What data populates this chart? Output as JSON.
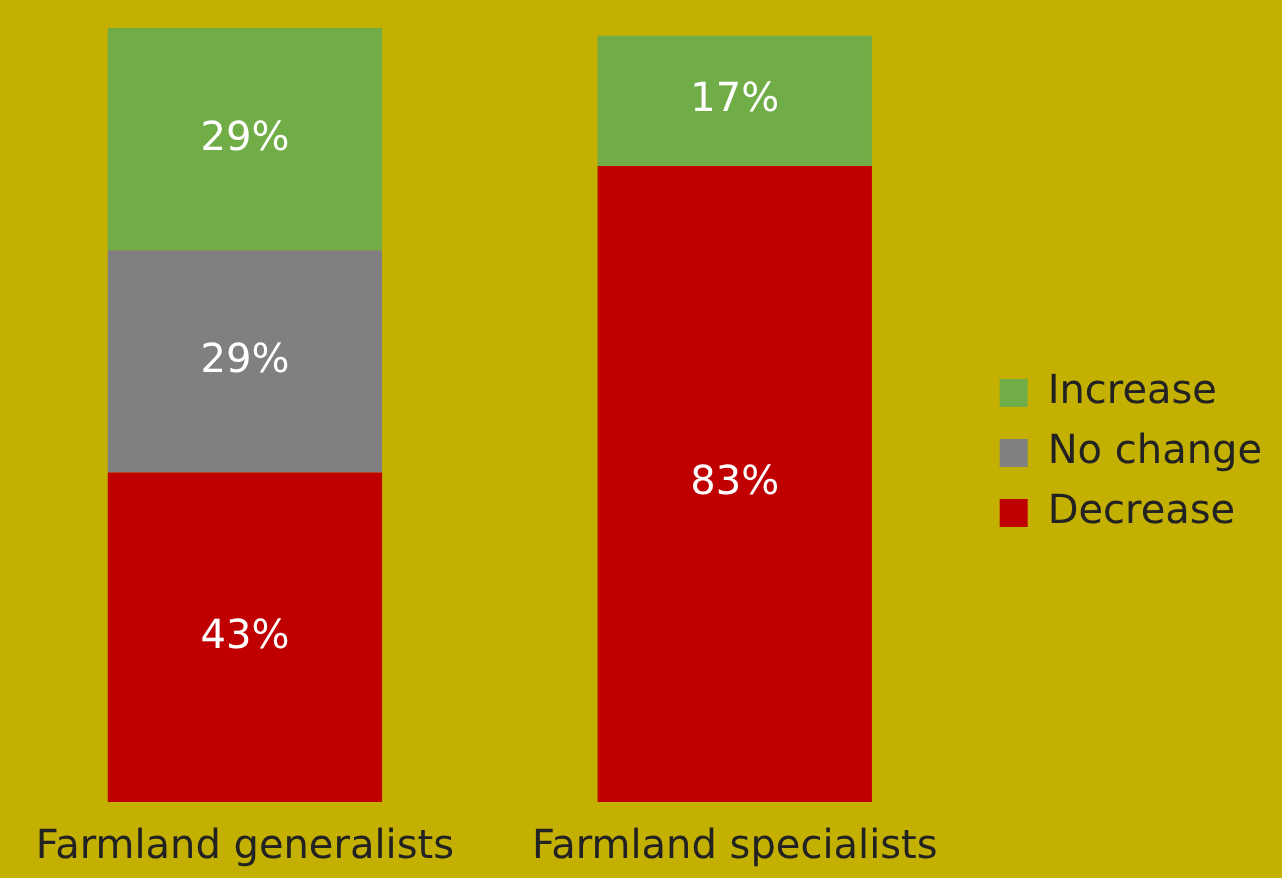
{
  "chart_data": {
    "type": "bar",
    "stacked": true,
    "categories": [
      "Farmland generalists",
      "Farmland specialists"
    ],
    "series": [
      {
        "name": "Decrease",
        "color": "#c00000",
        "values": [
          43,
          83
        ],
        "value_labels": [
          "43%",
          "83%"
        ]
      },
      {
        "name": "No change",
        "color": "#808080",
        "values": [
          29,
          0
        ],
        "value_labels": [
          "29%",
          null
        ]
      },
      {
        "name": "Increase",
        "color": "#70ad47",
        "values": [
          29,
          17
        ],
        "value_labels": [
          "29%",
          "17%"
        ]
      }
    ],
    "legend": "right",
    "grid": false
  }
}
